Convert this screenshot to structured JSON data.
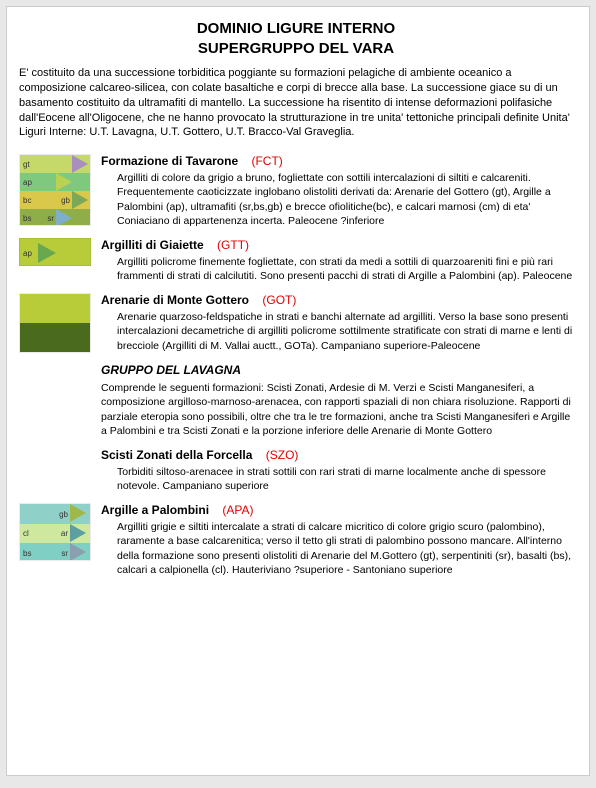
{
  "title_line1": "DOMINIO LIGURE INTERNO",
  "title_line2": "SUPERGRUPPO DEL VARA",
  "intro": "E' costituito da una successione torbiditica poggiante su formazioni pelagiche di ambiente oceanico a composizione calcareo-silicea, con colate basaltiche e corpi di brecce alla base. La successione giace su di un basamento costituito da ultramafiti di mantello. La successione ha risentito di intense deformazioni polifasiche dall'Eocene all'Oligocene,  che ne hanno provocato la strutturazione in tre unita' tettoniche principali definite Unita' Liguri Interne: U.T. Lavagna, U.T. Gottero, U.T. Bracco-Val Graveglia.",
  "entries": [
    {
      "name": "Formazione di Tavarone",
      "code": "(FCT)",
      "body": "Argilliti di colore da grigio a bruno, fogliettate con sottili intercalazioni di siltiti e calcareniti. Frequentemente caoticizzate inglobano olistoliti derivati da: Arenarie del Gottero (gt), Argille a Palombini (ap), ultramafiti (sr,bs,gb) e brecce ofiolitiche(bc), e calcari marnosi (cm) di eta' Coniaciano di appartenenza incerta. Paleocene ?inferiore",
      "swatch": {
        "kind": "multi",
        "rows": [
          {
            "bg": "#c5d96a",
            "label": "gt",
            "tri": "#a88fbd"
          },
          {
            "bg": "#7fc97f",
            "label": "ap",
            "tri": "#b9d24f"
          },
          {
            "bg": "#d9c84a",
            "label": "bc",
            "tri": "#7aa856",
            "tri_label": "gb"
          },
          {
            "bg": "#8fae4a",
            "label": "bs",
            "tri": "#7faec9",
            "tri_label": "sr"
          }
        ]
      }
    },
    {
      "name": "Argilliti di Giaiette",
      "code": "(GTT)",
      "body": "Argilliti policrome  finemente fogliettate, con strati da medi a sottili di quarzoareniti fini e più rari frammenti di strati di calcilutiti. Sono presenti pacchi di strati di Argille a Palombini (ap). Paleocene",
      "swatch": {
        "kind": "single_tri",
        "bg": "#b8cc3a",
        "tri": "#6aa84f",
        "label": "ap"
      }
    },
    {
      "name": "Arenarie di Monte Gottero",
      "code": "(GOT)",
      "body": "Arenarie quarzoso-feldspatiche in strati e banchi alternate ad argilliti. Verso la base sono presenti intercalazioni decametriche di argilliti policrome sottilmente stratificate con strati di marne e lenti di brecciole (Argilliti di M. Vallai auctt., GOTa). Campaniano superiore-Paleocene",
      "swatch": {
        "kind": "stack",
        "top": "#b8cc3a",
        "bottom": "#4a6b1e"
      }
    },
    {
      "group": "GRUPPO DEL LAVAGNA",
      "group_body": "Comprende le seguenti formazioni: Scisti Zonati, Ardesie di M. Verzi e Scisti Manganesiferi, a composizione argilloso-marnoso-arenacea, con rapporti spaziali di non chiara risoluzione. Rapporti di parziale eteropia sono possibili, oltre  che tra le tre formazioni, anche tra Scisti Manganesiferi e Argille a Palombini e tra Scisti Zonati e la porzione inferiore delle Arenarie di Monte Gottero"
    },
    {
      "name": "Scisti Zonati della Forcella",
      "code": "(SZO)",
      "body": "Torbiditi siltoso-arenacee in strati sottili con rari strati di marne localmente anche di spessore notevole. Campaniano superiore"
    },
    {
      "name": "Argille a Palombini",
      "code": "(APA)",
      "body": "Argilliti grigie e siltiti intercalate a strati di calcare micritico di colore grigio scuro (palombino), raramente a base calcarenitica; verso il tetto gli strati di palombino possono mancare. All'interno della formazione sono presenti olistoliti di Arenarie del M.Gottero (gt), serpentiniti (sr), basalti (bs), calcari a calpionella (cl). Hauteriviano ?superiore - Santoniano superiore",
      "swatch": {
        "kind": "multi",
        "rows": [
          {
            "bg": "#8fd1c9",
            "label": "",
            "tri": "#9fb84a",
            "tri_label": "gb"
          },
          {
            "bg": "#cfe8a0",
            "label": "cl",
            "tri": "#5f9ea0",
            "tri_label": "ar"
          },
          {
            "bg": "#7fcfc4",
            "label": "bs",
            "tri": "#8aa0b0",
            "tri_label": "sr"
          }
        ]
      }
    }
  ]
}
